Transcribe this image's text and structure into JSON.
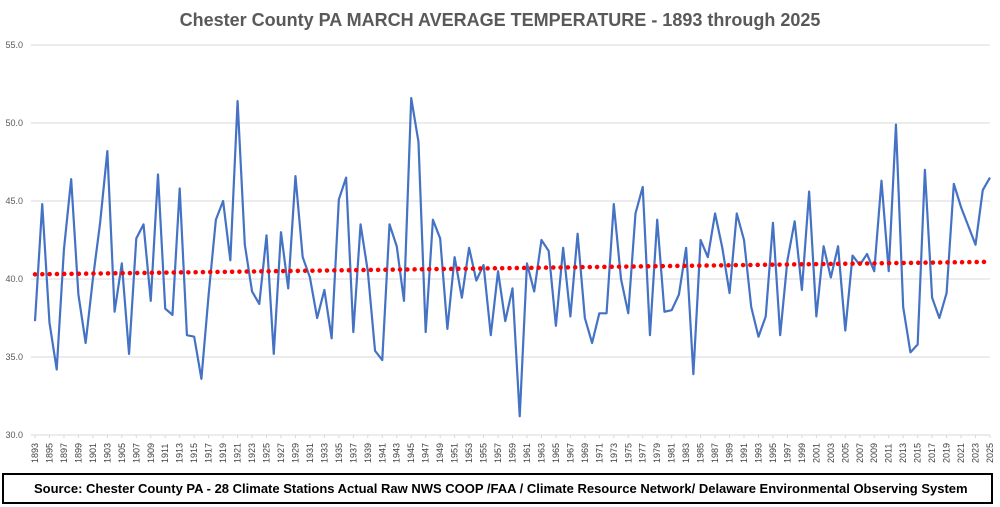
{
  "chart_data": {
    "type": "line",
    "title": "Chester County PA MARCH AVERAGE TEMPERATURE - 1893 through 2025",
    "xlabel": "",
    "ylabel": "",
    "ylim": [
      30.0,
      55.0
    ],
    "y_ticks": [
      "30.0",
      "35.0",
      "40.0",
      "45.0",
      "50.0",
      "55.0"
    ],
    "x_tick_labels": [
      "1893",
      "1895",
      "1897",
      "1899",
      "1901",
      "1903",
      "1905",
      "1907",
      "1909",
      "1911",
      "1913",
      "1915",
      "1917",
      "1919",
      "1921",
      "1923",
      "1925",
      "1927",
      "1929",
      "1931",
      "1933",
      "1935",
      "1937",
      "1939",
      "1941",
      "1943",
      "1945",
      "1947",
      "1949",
      "1951",
      "1953",
      "1955",
      "1957",
      "1959",
      "1961",
      "1963",
      "1965",
      "1967",
      "1969",
      "1971",
      "1973",
      "1975",
      "1977",
      "1979",
      "1981",
      "1983",
      "1985",
      "1987",
      "1989",
      "1991",
      "1993",
      "1995",
      "1997",
      "1999",
      "2001",
      "2003",
      "2005",
      "2007",
      "2009",
      "2011",
      "2013",
      "2015",
      "2017",
      "2019",
      "2021",
      "2023",
      "2025"
    ],
    "grid": true,
    "legend": "none",
    "x": [
      1893,
      1894,
      1895,
      1896,
      1897,
      1898,
      1899,
      1900,
      1901,
      1902,
      1903,
      1904,
      1905,
      1906,
      1907,
      1908,
      1909,
      1910,
      1911,
      1912,
      1913,
      1914,
      1915,
      1916,
      1917,
      1918,
      1919,
      1920,
      1921,
      1922,
      1923,
      1924,
      1925,
      1926,
      1927,
      1928,
      1929,
      1930,
      1931,
      1932,
      1933,
      1934,
      1935,
      1936,
      1937,
      1938,
      1939,
      1940,
      1941,
      1942,
      1943,
      1944,
      1945,
      1946,
      1947,
      1948,
      1949,
      1950,
      1951,
      1952,
      1953,
      1954,
      1955,
      1956,
      1957,
      1958,
      1959,
      1960,
      1961,
      1962,
      1963,
      1964,
      1965,
      1966,
      1967,
      1968,
      1969,
      1970,
      1971,
      1972,
      1973,
      1974,
      1975,
      1976,
      1977,
      1978,
      1979,
      1980,
      1981,
      1982,
      1983,
      1984,
      1985,
      1986,
      1987,
      1988,
      1989,
      1990,
      1991,
      1992,
      1993,
      1994,
      1995,
      1996,
      1997,
      1998,
      1999,
      2000,
      2001,
      2002,
      2003,
      2004,
      2005,
      2006,
      2007,
      2008,
      2009,
      2010,
      2011,
      2012,
      2013,
      2014,
      2015,
      2016,
      2017,
      2018,
      2019,
      2020,
      2021,
      2022,
      2023,
      2024,
      2025
    ],
    "series": [
      {
        "color": "#4472c4",
        "style": "solid",
        "values": [
          37.3,
          44.8,
          37.2,
          34.2,
          41.9,
          46.4,
          39.0,
          35.9,
          40.0,
          43.6,
          48.2,
          37.9,
          41.0,
          35.2,
          42.6,
          43.5,
          38.6,
          46.7,
          38.1,
          37.7,
          45.8,
          36.4,
          36.3,
          33.6,
          39.0,
          43.8,
          45.0,
          41.2,
          51.4,
          42.2,
          39.2,
          38.4,
          42.8,
          35.2,
          43.0,
          39.4,
          46.6,
          41.4,
          40.1,
          37.5,
          39.3,
          36.2,
          45.1,
          46.5,
          36.6,
          43.5,
          40.5,
          35.4,
          34.8,
          43.5,
          42.1,
          38.6,
          51.6,
          48.8,
          36.6,
          43.8,
          42.6,
          36.8,
          41.4,
          38.8,
          42.0,
          39.9,
          40.9,
          36.4,
          40.5,
          37.3,
          39.4,
          31.2,
          41.0,
          39.2,
          42.5,
          41.8,
          37.0,
          42.0,
          37.6,
          42.9,
          37.5,
          35.9,
          37.8,
          37.8,
          44.8,
          40.0,
          37.8,
          44.2,
          45.9,
          36.4,
          43.8,
          37.9,
          38.0,
          39.0,
          42.0,
          33.9,
          42.5,
          41.4,
          44.2,
          42.0,
          39.1,
          44.2,
          42.5,
          38.2,
          36.3,
          37.6,
          43.6,
          36.4,
          41.2,
          43.7,
          39.3,
          45.6,
          37.6,
          42.1,
          40.1,
          42.1,
          36.7,
          41.5,
          40.9,
          41.6,
          40.5,
          46.3,
          40.5,
          49.9,
          38.2,
          35.3,
          35.8,
          47.0,
          38.8,
          37.5,
          39.1,
          46.1,
          44.6,
          43.4,
          42.2,
          45.7,
          46.5
        ]
      },
      {
        "color": "#ff0000",
        "style": "dotted",
        "trend": true,
        "values_start_end": [
          40.3,
          41.1
        ]
      }
    ]
  },
  "source_note": "Source: Chester County PA - 28 Climate Stations Actual Raw NWS COOP /FAA / Climate Resource Network/ Delaware Environmental Observing System"
}
